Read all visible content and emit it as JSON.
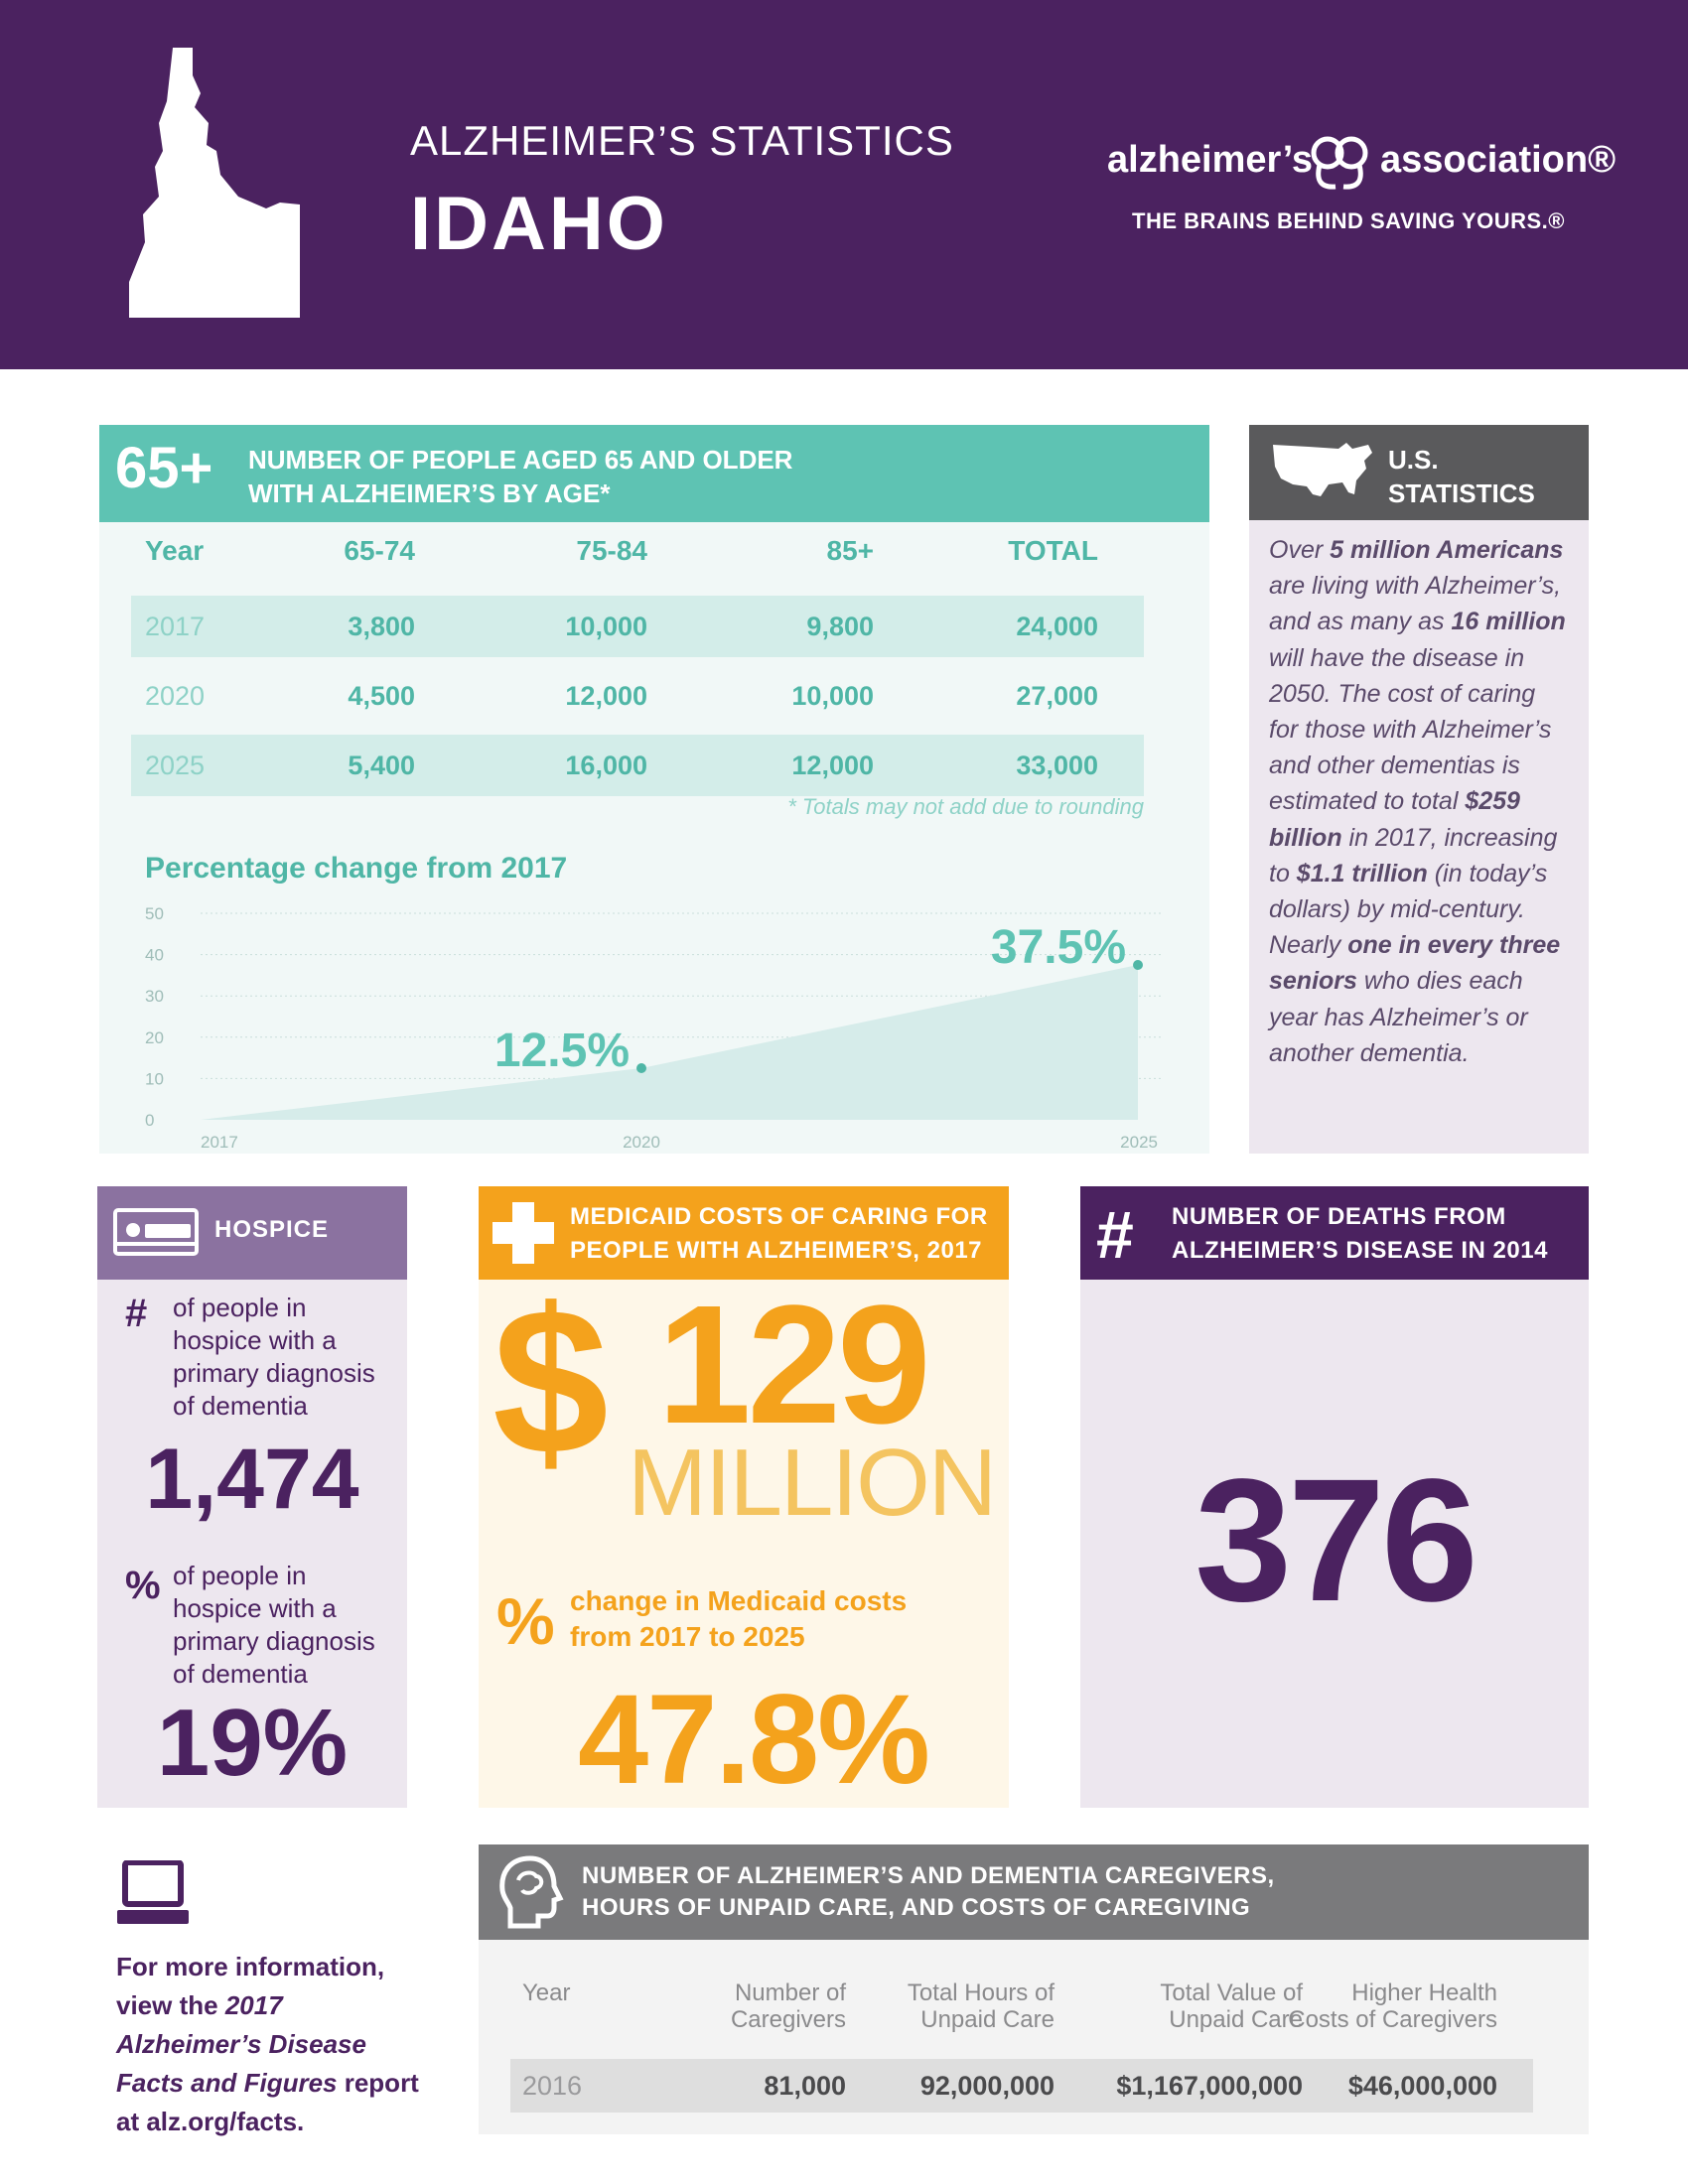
{
  "header": {
    "subtitle": "ALZHEIMER’S STATISTICS",
    "state": "IDAHO",
    "logo_left": "alzheimer’s",
    "logo_right": "association®",
    "tagline": "THE BRAINS BEHIND SAVING YOURS.®"
  },
  "age_section": {
    "badge": "65+",
    "title_line1": "NUMBER OF PEOPLE AGED 65 AND OLDER",
    "title_line2": "WITH ALZHEIMER’S BY AGE*",
    "columns": [
      "Year",
      "65-74",
      "75-84",
      "85+",
      "TOTAL"
    ],
    "rows": [
      [
        "2017",
        "3,800",
        "10,000",
        "9,800",
        "24,000"
      ],
      [
        "2020",
        "4,500",
        "12,000",
        "10,000",
        "27,000"
      ],
      [
        "2025",
        "5,400",
        "16,000",
        "12,000",
        "33,000"
      ]
    ],
    "note": "* Totals may not add due to rounding",
    "chart_title": "Percentage change from 2017"
  },
  "chart_data": {
    "type": "area",
    "title": "Percentage change from 2017",
    "x": [
      "2017",
      "2020",
      "2025"
    ],
    "series": [
      {
        "values": [
          0,
          12.5,
          37.5
        ]
      }
    ],
    "data_labels": [
      "",
      "12.5%",
      "37.5%"
    ],
    "yticks": [
      "0",
      "10",
      "20",
      "30",
      "40",
      "50"
    ],
    "ylim": [
      0,
      50
    ],
    "grid": true
  },
  "us_stats": {
    "title_line1": "U.S.",
    "title_line2": "STATISTICS",
    "p1_a": "Over ",
    "p1_b": "5 million Americans",
    "p1_c": " are living with Alzheimer’s, and as many as ",
    "p1_d": "16 million",
    "p1_e": " will have the disease in 2050. The cost of caring for those with Alzheimer’s and other dementias is estimated to total ",
    "p1_f": "$259 billion",
    "p1_g": " in 2017, increasing to ",
    "p1_h": "$1.1 trillion",
    "p1_i": " (in today’s dollars) by mid-century. Nearly ",
    "p1_j": "one in every three seniors",
    "p1_k": " who dies each year has Alzheimer’s or another dementia."
  },
  "hospice": {
    "title": "HOSPICE",
    "count_symbol": "#",
    "count_label": "of people in hospice with a primary diagnosis of dementia",
    "count_value": "1,474",
    "pct_symbol": "%",
    "pct_label": "of people in hospice with a primary diagnosis of dementia",
    "pct_value": "19%"
  },
  "medicaid": {
    "title_line1": "MEDICAID COSTS OF CARING FOR",
    "title_line2": "PEOPLE WITH ALZHEIMER’S, 2017",
    "dollar": "$",
    "amount": "129",
    "unit": "MILLION",
    "pct_symbol": "%",
    "pct_label_line1": "change in Medicaid costs",
    "pct_label_line2": "from 2017 to 2025",
    "pct_value": "47.8%"
  },
  "deaths": {
    "symbol": "#",
    "title_line1": "NUMBER OF DEATHS FROM",
    "title_line2": "ALZHEIMER’S DISEASE IN 2014",
    "value": "376"
  },
  "more_info": {
    "line1": "For more information,",
    "line2_a": "view the ",
    "line2_b": "2017",
    "line3": "Alzheimer’s Disease",
    "line4_a": "Facts and Figures",
    "line4_b": " report",
    "line5": "at alz.org/facts."
  },
  "caregivers": {
    "title_line1": "NUMBER OF ALZHEIMER’S AND DEMENTIA CAREGIVERS,",
    "title_line2": "HOURS OF UNPAID CARE, AND COSTS OF CAREGIVING",
    "col_year": "Year",
    "col1_a": "Number of",
    "col1_b": "Caregivers",
    "col2_a": "Total Hours of",
    "col2_b": "Unpaid Care",
    "col3_a": "Total Value of",
    "col3_b": "Unpaid Care",
    "col4_a": "Higher Health",
    "col4_b": "Costs of Caregivers",
    "row": [
      "2016",
      "81,000",
      "92,000,000",
      "$1,167,000,000",
      "$46,000,000"
    ]
  },
  "colors": {
    "purple": "#4b2260",
    "teal": "#5ec3b3",
    "orange": "#f4a21c",
    "gray": "#5a5a5c"
  }
}
